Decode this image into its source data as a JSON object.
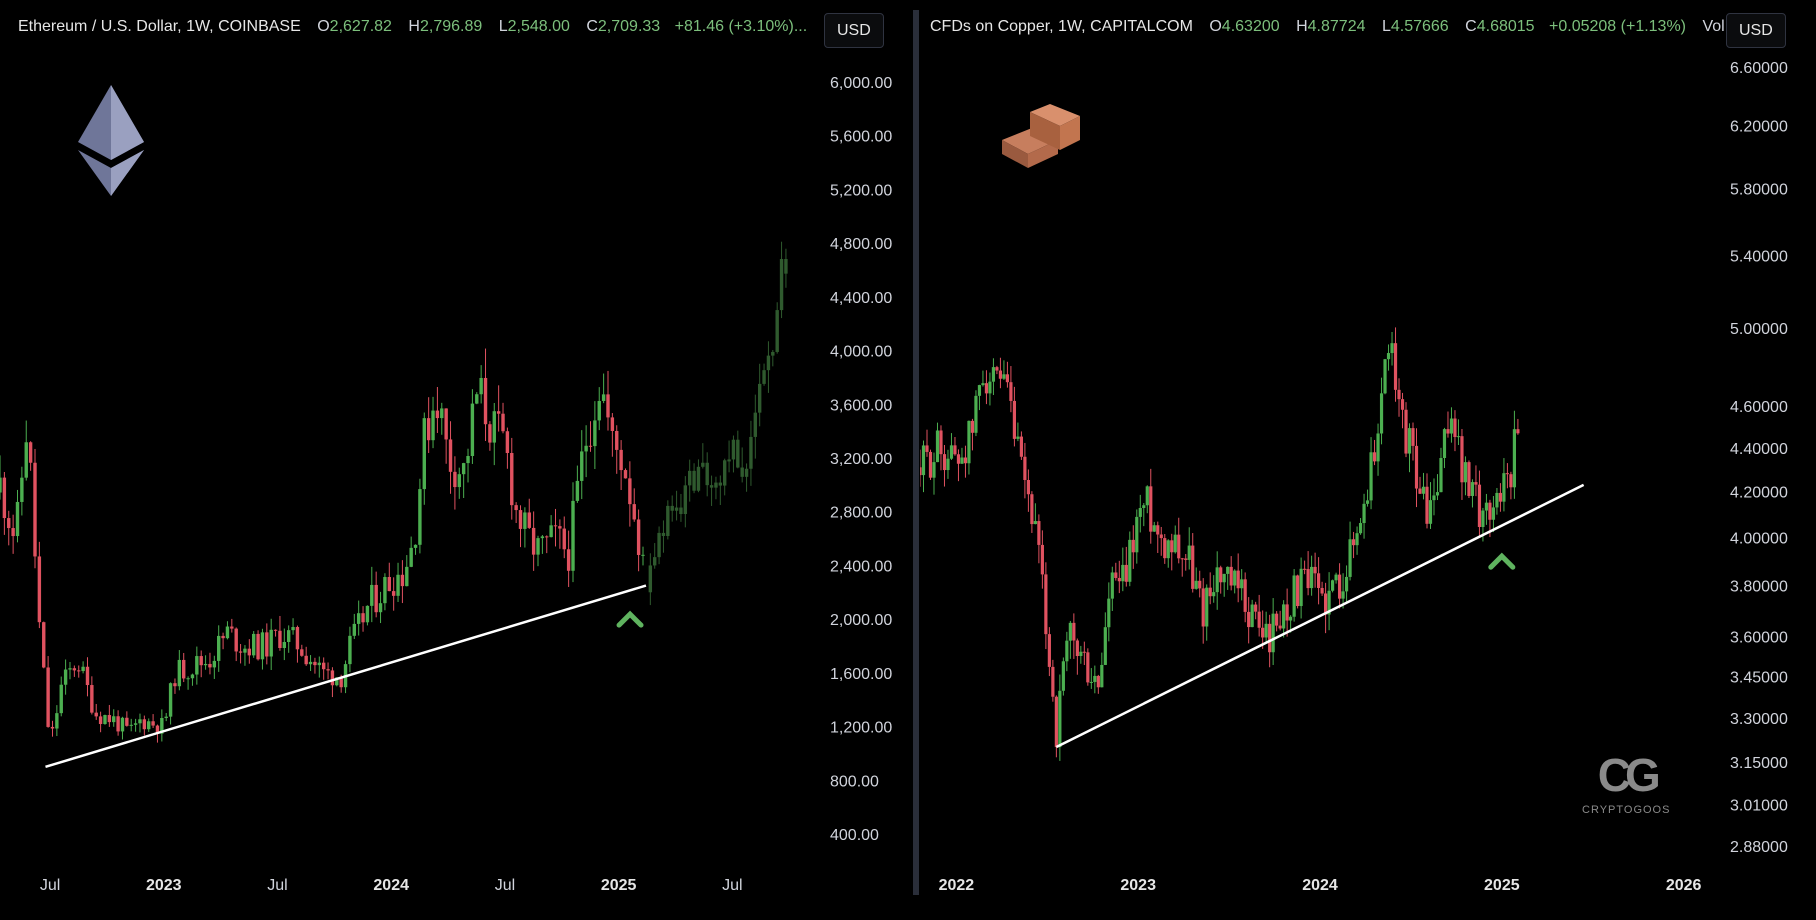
{
  "legend_eth": {
    "symbol": "Ethereum / U.S. Dollar, 1W, COINBASE",
    "o_key": "O",
    "o_val": "2,627.82",
    "h_key": "H",
    "h_val": "2,796.89",
    "l_key": "L",
    "l_val": "2,548.00",
    "c_key": "C",
    "c_val": "2,709.33",
    "change": "+81.46 (+3.10%)..."
  },
  "legend_cu": {
    "symbol": "CFDs on Copper, 1W, CAPITALCOM",
    "o_key": "O",
    "o_val": "4.63200",
    "h_key": "H",
    "h_val": "4.87724",
    "l_key": "L",
    "l_val": "4.57666",
    "c_key": "C",
    "c_val": "4.68015",
    "change": "+0.05208 (+1.13%)",
    "vol": "Vol..."
  },
  "currency_eth": "USD",
  "currency_cu": "USD",
  "colors": {
    "up": "#4caf50",
    "down": "#e05260",
    "projection": "#2f5a2e",
    "trend": "#ffffff",
    "bg": "#000000"
  },
  "icons": {
    "eth_logo": "ethereum-diamond-icon",
    "copper_logo": "copper-ingot-icon",
    "bounce": "green-chevron-up-icon",
    "brand": "cryptogoos-logo-icon"
  },
  "logo_text": "CRYPTOGOOS",
  "chart_data": [
    {
      "type": "candlestick",
      "title": "Ethereum / U.S. Dollar, 1W, COINBASE",
      "y_ticks": [
        "6,000.00",
        "5,600.00",
        "5,200.00",
        "4,800.00",
        "4,400.00",
        "4,000.00",
        "3,600.00",
        "3,200.00",
        "2,800.00",
        "2,400.00",
        "2,000.00",
        "1,600.00",
        "1,200.00",
        "800.00",
        "400.00"
      ],
      "y_tick_values": [
        6000,
        5600,
        5200,
        4800,
        4400,
        4000,
        3600,
        3200,
        2800,
        2400,
        2000,
        1600,
        1200,
        800,
        400
      ],
      "ylim": [
        200,
        6200
      ],
      "x_ticks": [
        {
          "label": "Jul",
          "bold": false,
          "t": 2022.5
        },
        {
          "label": "2023",
          "bold": true,
          "t": 2023.0
        },
        {
          "label": "Jul",
          "bold": false,
          "t": 2023.5
        },
        {
          "label": "2024",
          "bold": true,
          "t": 2024.0
        },
        {
          "label": "Jul",
          "bold": false,
          "t": 2024.5
        },
        {
          "label": "2025",
          "bold": true,
          "t": 2025.0
        },
        {
          "label": "Jul",
          "bold": false,
          "t": 2025.5
        }
      ],
      "xlim": [
        2022.28,
        2025.85
      ],
      "key_closes": [
        [
          2022.28,
          3000
        ],
        [
          2022.35,
          2600
        ],
        [
          2022.4,
          3500
        ],
        [
          2022.45,
          2000
        ],
        [
          2022.5,
          1050
        ],
        [
          2022.55,
          1500
        ],
        [
          2022.62,
          1700
        ],
        [
          2022.7,
          1300
        ],
        [
          2022.78,
          1250
        ],
        [
          2022.85,
          1150
        ],
        [
          2022.9,
          1250
        ],
        [
          2023.0,
          1200
        ],
        [
          2023.05,
          1600
        ],
        [
          2023.12,
          1650
        ],
        [
          2023.2,
          1700
        ],
        [
          2023.28,
          1900
        ],
        [
          2023.35,
          1800
        ],
        [
          2023.45,
          1800
        ],
        [
          2023.52,
          1900
        ],
        [
          2023.6,
          1800
        ],
        [
          2023.7,
          1600
        ],
        [
          2023.78,
          1580
        ],
        [
          2023.82,
          1800
        ],
        [
          2023.9,
          2100
        ],
        [
          2024.0,
          2300
        ],
        [
          2024.05,
          2350
        ],
        [
          2024.1,
          2600
        ],
        [
          2024.15,
          3400
        ],
        [
          2024.2,
          3700
        ],
        [
          2024.25,
          3200
        ],
        [
          2024.32,
          3100
        ],
        [
          2024.38,
          3700
        ],
        [
          2024.45,
          3400
        ],
        [
          2024.5,
          3300
        ],
        [
          2024.55,
          2800
        ],
        [
          2024.6,
          2600
        ],
        [
          2024.65,
          2500
        ],
        [
          2024.72,
          2600
        ],
        [
          2024.78,
          2500
        ],
        [
          2024.85,
          3300
        ],
        [
          2024.92,
          3800
        ],
        [
          2024.97,
          3300
        ],
        [
          2025.02,
          3200
        ],
        [
          2025.08,
          2700
        ],
        [
          2025.12,
          2200
        ]
      ],
      "projection_closes": [
        [
          2025.12,
          2200
        ],
        [
          2025.2,
          2700
        ],
        [
          2025.28,
          2900
        ],
        [
          2025.35,
          3100
        ],
        [
          2025.42,
          2950
        ],
        [
          2025.5,
          3300
        ],
        [
          2025.55,
          3100
        ],
        [
          2025.6,
          3500
        ],
        [
          2025.66,
          3900
        ],
        [
          2025.7,
          4400
        ],
        [
          2025.74,
          4800
        ]
      ],
      "trendline": [
        [
          2022.48,
          900
        ],
        [
          2025.12,
          2250
        ]
      ],
      "bounce_marker": [
        2025.05,
        2000
      ]
    },
    {
      "type": "candlestick",
      "title": "CFDs on Copper, 1W, CAPITALCOM",
      "y_ticks": [
        "6.60000",
        "6.20000",
        "5.80000",
        "5.40000",
        "5.00000",
        "4.60000",
        "4.40000",
        "4.20000",
        "4.00000",
        "3.80000",
        "3.60000",
        "3.45000",
        "3.30000",
        "3.15000",
        "3.01000",
        "2.88000"
      ],
      "y_tick_values": [
        6.6,
        6.2,
        5.8,
        5.4,
        5.0,
        4.6,
        4.4,
        4.2,
        4.0,
        3.8,
        3.6,
        3.45,
        3.3,
        3.15,
        3.01,
        2.88
      ],
      "log_scale": true,
      "x_ticks": [
        {
          "label": "2022",
          "bold": true,
          "t": 2022.0
        },
        {
          "label": "2023",
          "bold": true,
          "t": 2023.0
        },
        {
          "label": "2024",
          "bold": true,
          "t": 2024.0
        },
        {
          "label": "2025",
          "bold": true,
          "t": 2025.0
        },
        {
          "label": "2026",
          "bold": true,
          "t": 2026.0
        }
      ],
      "xlim": [
        2021.8,
        2026.2
      ],
      "key_closes": [
        [
          2021.8,
          4.3
        ],
        [
          2021.9,
          4.4
        ],
        [
          2022.0,
          4.35
        ],
        [
          2022.08,
          4.45
        ],
        [
          2022.15,
          4.8
        ],
        [
          2022.2,
          4.7
        ],
        [
          2022.28,
          4.65
        ],
        [
          2022.35,
          4.3
        ],
        [
          2022.42,
          4.1
        ],
        [
          2022.5,
          3.6
        ],
        [
          2022.55,
          3.25
        ],
        [
          2022.62,
          3.6
        ],
        [
          2022.7,
          3.5
        ],
        [
          2022.78,
          3.4
        ],
        [
          2022.85,
          3.8
        ],
        [
          2022.92,
          3.8
        ],
        [
          2023.0,
          4.1
        ],
        [
          2023.05,
          4.15
        ],
        [
          2023.12,
          4.0
        ],
        [
          2023.2,
          4.0
        ],
        [
          2023.28,
          3.9
        ],
        [
          2023.35,
          3.7
        ],
        [
          2023.42,
          3.85
        ],
        [
          2023.5,
          3.8
        ],
        [
          2023.58,
          3.75
        ],
        [
          2023.65,
          3.65
        ],
        [
          2023.72,
          3.6
        ],
        [
          2023.8,
          3.7
        ],
        [
          2023.88,
          3.8
        ],
        [
          2023.95,
          3.8
        ],
        [
          2024.05,
          3.75
        ],
        [
          2024.12,
          3.85
        ],
        [
          2024.2,
          4.0
        ],
        [
          2024.28,
          4.3
        ],
        [
          2024.35,
          4.7
        ],
        [
          2024.38,
          5.0
        ],
        [
          2024.42,
          4.6
        ],
        [
          2024.5,
          4.4
        ],
        [
          2024.58,
          4.1
        ],
        [
          2024.65,
          4.2
        ],
        [
          2024.72,
          4.6
        ],
        [
          2024.78,
          4.3
        ],
        [
          2024.85,
          4.15
        ],
        [
          2024.92,
          4.1
        ],
        [
          2024.98,
          4.2
        ],
        [
          2025.05,
          4.3
        ],
        [
          2025.1,
          4.65
        ]
      ],
      "trendline": [
        [
          2022.55,
          3.2
        ],
        [
          2025.45,
          4.23
        ]
      ],
      "bounce_marker": [
        2025.0,
        3.9
      ]
    }
  ]
}
